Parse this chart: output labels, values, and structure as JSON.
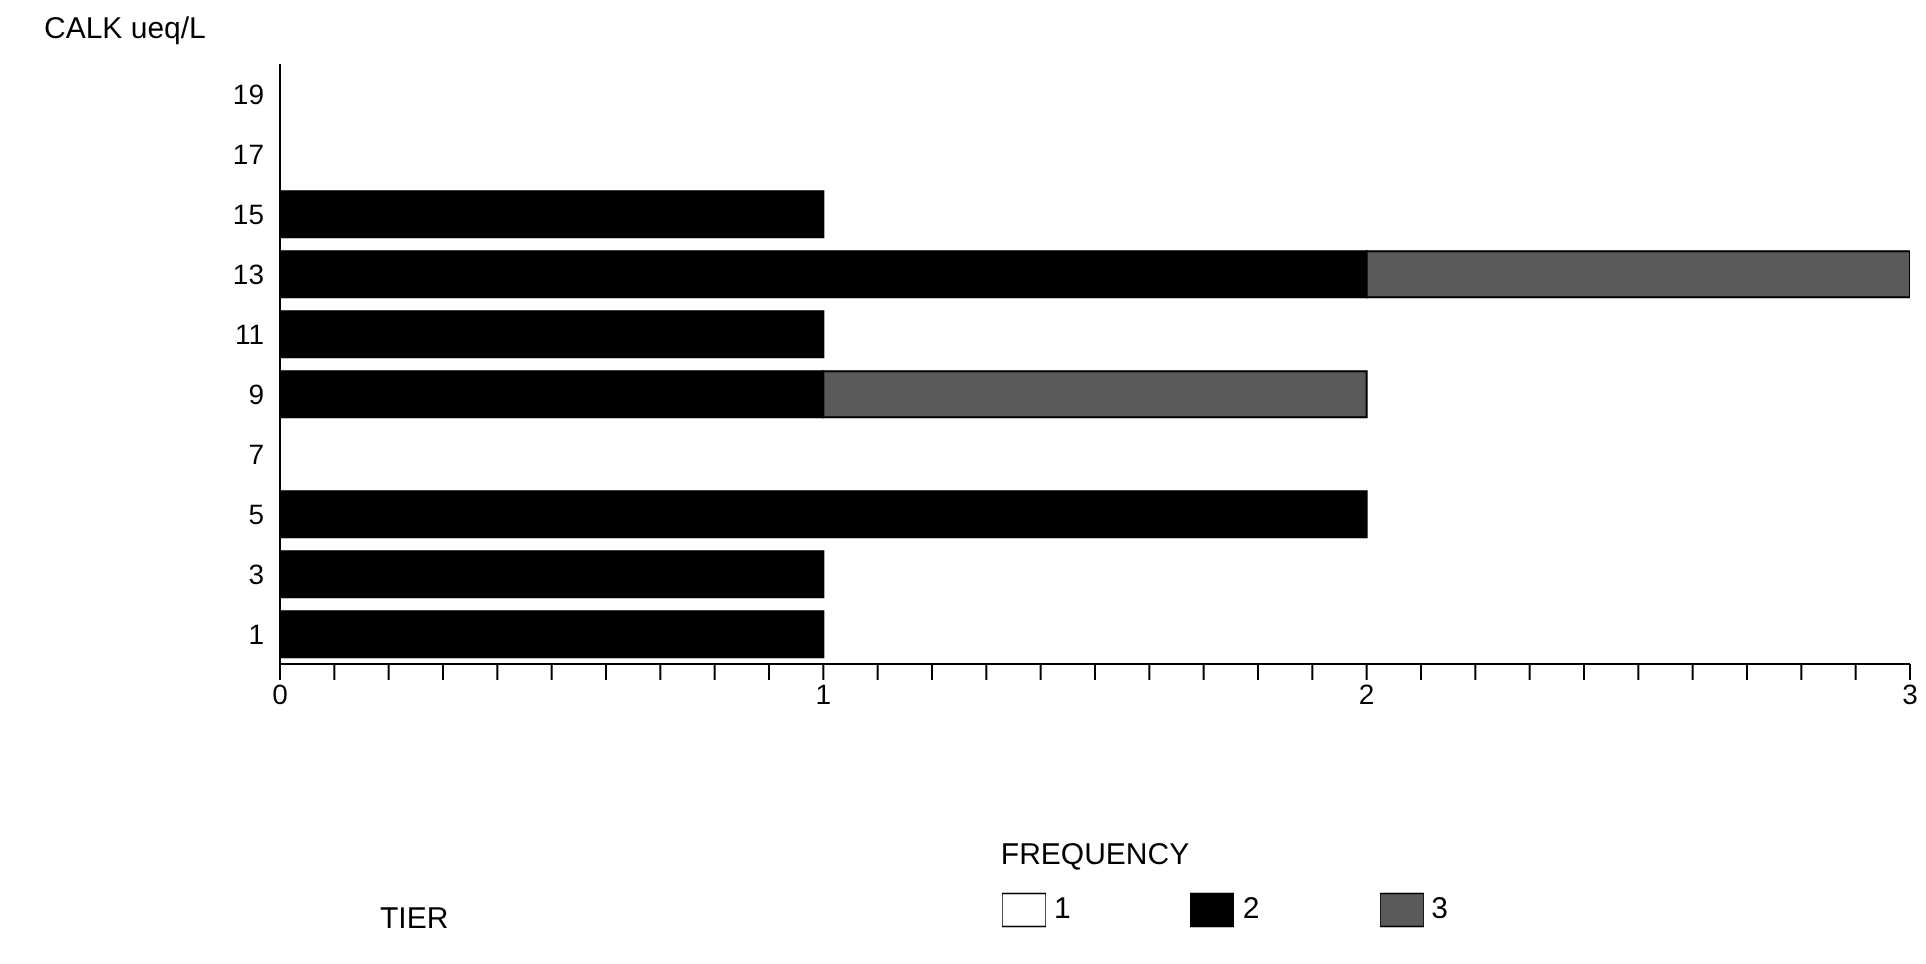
{
  "chart_data": {
    "type": "bar",
    "orientation": "horizontal",
    "stacked": true,
    "ylabel": "CALK ueq/L",
    "xlabel": "FREQUENCY",
    "legend_title": "TIER",
    "legend": "bottom",
    "grid": false,
    "categories": [
      "19",
      "17",
      "15",
      "13",
      "11",
      "9",
      "7",
      "5",
      "3",
      "1"
    ],
    "series": [
      {
        "name": "1",
        "color": "#ffffff",
        "values": [
          0,
          0,
          0,
          0,
          0,
          0,
          0,
          0,
          0,
          0
        ]
      },
      {
        "name": "2",
        "color": "#000000",
        "values": [
          0,
          0,
          1,
          2,
          1,
          1,
          0,
          2,
          1,
          1
        ]
      },
      {
        "name": "3",
        "color": "#5a5a5a",
        "values": [
          0,
          0,
          0,
          1,
          0,
          1,
          0,
          0,
          0,
          0
        ]
      }
    ],
    "xlim": [
      0,
      3
    ],
    "xticks": [
      0,
      {
        "value": 0.1,
        "label": null
      },
      {
        "value": 0.2,
        "label": null
      },
      {
        "value": 0.3,
        "label": null
      },
      {
        "value": 0.4,
        "label": null
      },
      {
        "value": 0.5,
        "label": null
      },
      {
        "value": 0.6,
        "label": null
      },
      {
        "value": 0.7,
        "label": null
      },
      {
        "value": 0.8,
        "label": null
      },
      {
        "value": 0.9,
        "label": null
      },
      1,
      {
        "value": 1.1,
        "label": null
      },
      {
        "value": 1.2,
        "label": null
      },
      {
        "value": 1.3,
        "label": null
      },
      {
        "value": 1.4,
        "label": null
      },
      {
        "value": 1.5,
        "label": null
      },
      {
        "value": 1.6,
        "label": null
      },
      {
        "value": 1.7,
        "label": null
      },
      {
        "value": 1.8,
        "label": null
      },
      {
        "value": 1.9,
        "label": null
      },
      2,
      {
        "value": 2.1,
        "label": null
      },
      {
        "value": 2.2,
        "label": null
      },
      {
        "value": 2.3,
        "label": null
      },
      {
        "value": 2.4,
        "label": null
      },
      {
        "value": 2.5,
        "label": null
      },
      {
        "value": 2.6,
        "label": null
      },
      {
        "value": 2.7,
        "label": null
      },
      {
        "value": 2.8,
        "label": null
      },
      {
        "value": 2.9,
        "label": null
      },
      3
    ]
  }
}
